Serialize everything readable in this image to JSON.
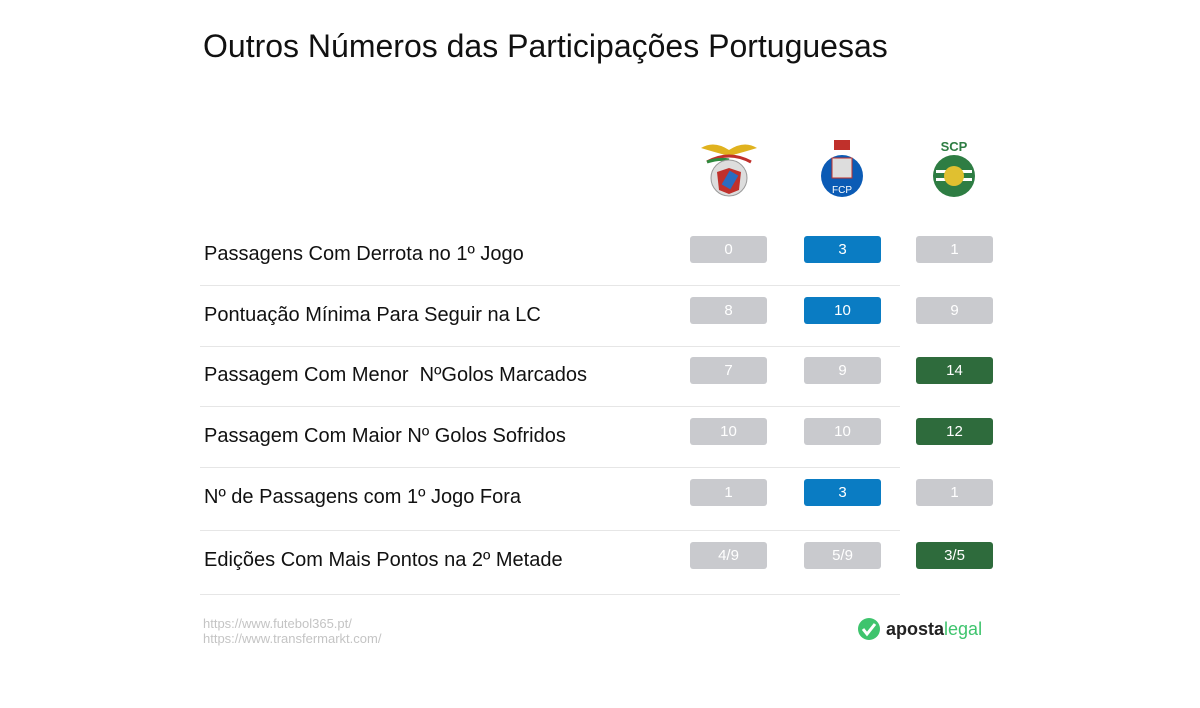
{
  "title": "Outros Números das Participações Portuguesas",
  "teams": [
    {
      "name": "Benfica",
      "icon": "benfica-crest"
    },
    {
      "name": "FC Porto",
      "icon": "porto-crest",
      "crest_text": "FCP"
    },
    {
      "name": "Sporting",
      "icon": "sporting-crest",
      "crest_text": "SCP"
    }
  ],
  "colors": {
    "neutral": "#c9cace",
    "porto": "#0a7cc3",
    "sporting": "#2e6b3c"
  },
  "rows": [
    {
      "label": "Passagens Com Derrota no 1º Jogo",
      "values": [
        "0",
        "3",
        "1"
      ],
      "highlight": [
        "neutral",
        "porto",
        "neutral"
      ]
    },
    {
      "label": "Pontuação Mínima Para Seguir na LC",
      "values": [
        "8",
        "10",
        "9"
      ],
      "highlight": [
        "neutral",
        "porto",
        "neutral"
      ]
    },
    {
      "label": "Passagem Com Menor  NºGolos Marcados",
      "values": [
        "7",
        "9",
        "14"
      ],
      "highlight": [
        "neutral",
        "neutral",
        "sporting"
      ]
    },
    {
      "label": "Passagem Com Maior Nº Golos Sofridos",
      "values": [
        "10",
        "10",
        "12"
      ],
      "highlight": [
        "neutral",
        "neutral",
        "sporting"
      ]
    },
    {
      "label": "Nº de Passagens com 1º Jogo Fora",
      "values": [
        "1",
        "3",
        "1"
      ],
      "highlight": [
        "neutral",
        "porto",
        "neutral"
      ]
    },
    {
      "label": "Edições Com Mais Pontos na 2º Metade",
      "values": [
        "4/9",
        "5/9",
        "3/5"
      ],
      "highlight": [
        "neutral",
        "neutral",
        "sporting"
      ]
    }
  ],
  "sources": [
    "https://www.futebol365.pt/",
    "https://www.transfermarkt.com/"
  ],
  "brand": {
    "part1": "aposta",
    "part2": "legal"
  }
}
